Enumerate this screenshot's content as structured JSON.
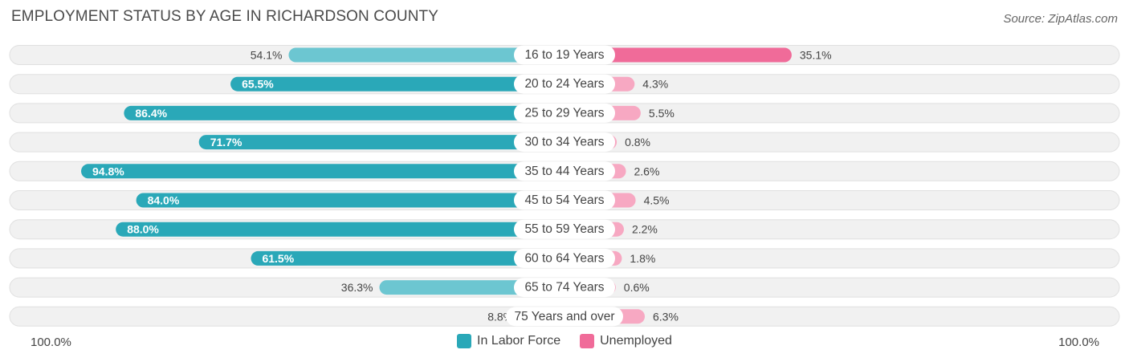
{
  "chart_data": {
    "type": "bar",
    "orientation": "diverging-horizontal",
    "title": "EMPLOYMENT STATUS BY AGE IN RICHARDSON COUNTY",
    "source": "Source: ZipAtlas.com",
    "categories": [
      "16 to 19 Years",
      "20 to 24 Years",
      "25 to 29 Years",
      "30 to 34 Years",
      "35 to 44 Years",
      "45 to 54 Years",
      "55 to 59 Years",
      "60 to 64 Years",
      "65 to 74 Years",
      "75 Years and over"
    ],
    "series": [
      {
        "name": "In Labor Force",
        "values": [
          54.1,
          65.5,
          86.4,
          71.7,
          94.8,
          84.0,
          88.0,
          61.5,
          36.3,
          8.8
        ],
        "labels": [
          "54.1%",
          "65.5%",
          "86.4%",
          "71.7%",
          "94.8%",
          "84.0%",
          "88.0%",
          "61.5%",
          "36.3%",
          "8.8%"
        ]
      },
      {
        "name": "Unemployed",
        "values": [
          35.1,
          4.3,
          5.5,
          0.8,
          2.6,
          4.5,
          2.2,
          1.8,
          0.6,
          6.3
        ],
        "labels": [
          "35.1%",
          "4.3%",
          "5.5%",
          "0.8%",
          "2.6%",
          "4.5%",
          "2.2%",
          "1.8%",
          "0.6%",
          "6.3%"
        ]
      }
    ],
    "xlim": [
      -100,
      100
    ],
    "axis_left_label": "100.0%",
    "axis_right_label": "100.0%",
    "legend_position": "bottom-center"
  },
  "colors": {
    "labor_dark": "#2aa8b8",
    "labor_light": "#6cc6d1",
    "unemployed_dark": "#f06b99",
    "unemployed_light": "#f7a8c2",
    "track": "#f1f1f1",
    "track_border": "#e0e0e0"
  }
}
